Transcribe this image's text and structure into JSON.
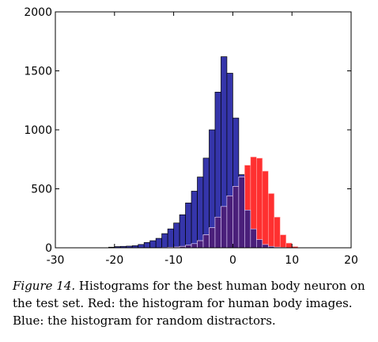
{
  "chart_data": {
    "type": "bar",
    "title": "",
    "xlabel": "",
    "ylabel": "",
    "xlim": [
      -30,
      20
    ],
    "ylim": [
      0,
      2000
    ],
    "x_ticks": [
      "-30",
      "-20",
      "-10",
      "0",
      "10",
      "20"
    ],
    "y_ticks": [
      "0",
      "500",
      "1000",
      "1500",
      "2000"
    ],
    "bin_width": 1,
    "bin_starts": [
      -21,
      -20,
      -19,
      -18,
      -17,
      -16,
      -15,
      -14,
      -13,
      -12,
      -11,
      -10,
      -9,
      -8,
      -7,
      -6,
      -5,
      -4,
      -3,
      -2,
      -1,
      0,
      1,
      2,
      3,
      4,
      5,
      6,
      7,
      8,
      9,
      10
    ],
    "series": [
      {
        "color": "#3535aa",
        "values": [
          5,
          10,
          12,
          14,
          18,
          28,
          45,
          60,
          80,
          120,
          160,
          210,
          280,
          380,
          480,
          600,
          760,
          1000,
          1320,
          1620,
          1480,
          1100,
          620,
          320,
          160,
          70,
          28,
          12,
          6,
          3,
          1,
          0
        ]
      },
      {
        "color": "#ff3030",
        "values": [
          0,
          0,
          0,
          0,
          0,
          0,
          0,
          0,
          0,
          2,
          4,
          6,
          12,
          22,
          35,
          60,
          110,
          170,
          260,
          350,
          440,
          520,
          600,
          700,
          770,
          760,
          650,
          460,
          260,
          110,
          40,
          10
        ]
      }
    ],
    "overlap_color": "#4a1f7a"
  },
  "caption": {
    "figure_label": "Figure 14.",
    "text": " Histograms for the best human body neuron on the test set. Red: the histogram for human body images. Blue: the histogram for random distractors."
  }
}
